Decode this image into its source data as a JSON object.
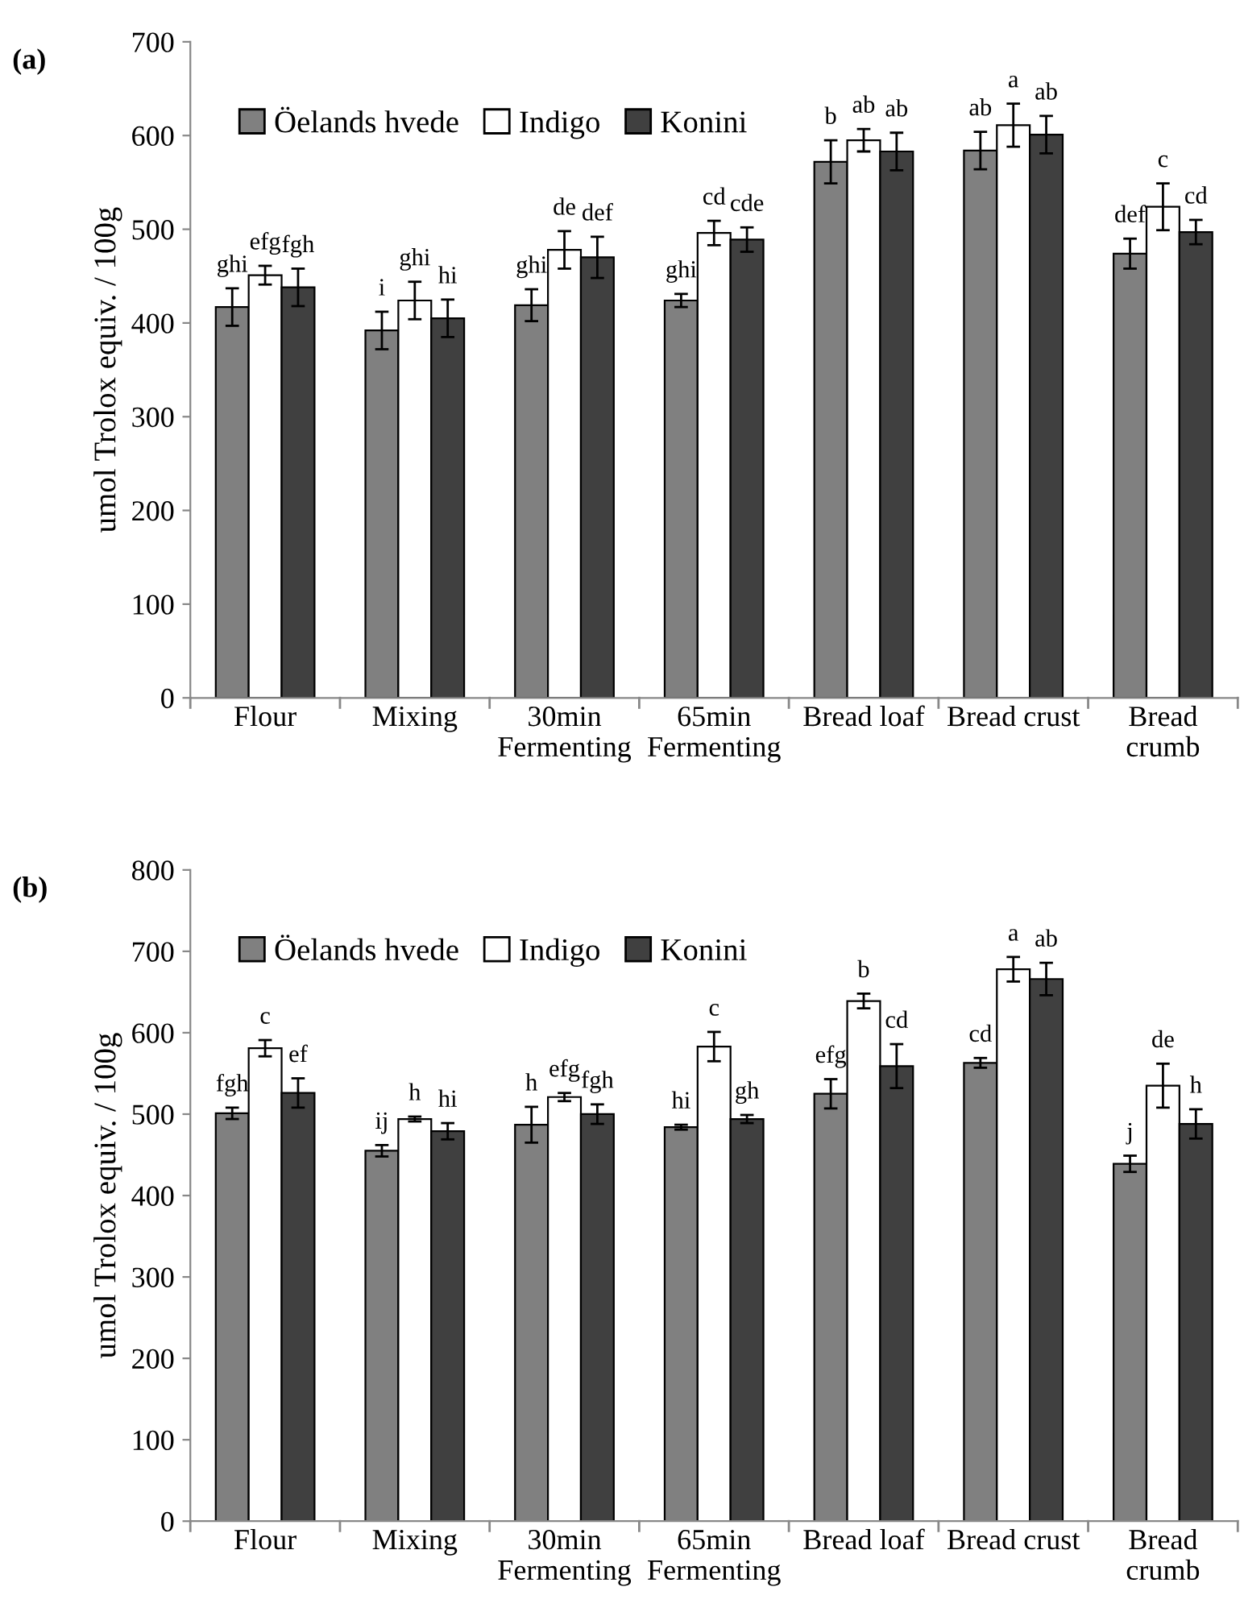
{
  "chart_data": [
    {
      "type": "bar",
      "title": "(a)",
      "ylabel": "umol Trolox equiv. / 100g",
      "categories": [
        "Flour",
        "Mixing",
        "30min\nFermenting",
        "65min\nFermenting",
        "Bread loaf",
        "Bread crust",
        "Bread\ncrumb"
      ],
      "series": [
        {
          "name": "Öelands hvede",
          "color": "#808080",
          "values": [
            417,
            392,
            419,
            424,
            572,
            584,
            474
          ],
          "errors": [
            20,
            20,
            17,
            7,
            23,
            20,
            16
          ]
        },
        {
          "name": "Indigo",
          "color": "#ffffff",
          "values": [
            451,
            424,
            478,
            496,
            595,
            611,
            524
          ],
          "errors": [
            10,
            20,
            20,
            13,
            12,
            23,
            25
          ]
        },
        {
          "name": "Konini",
          "color": "#404040",
          "values": [
            438,
            405,
            470,
            489,
            583,
            601,
            497
          ],
          "errors": [
            20,
            20,
            22,
            13,
            20,
            20,
            13
          ]
        }
      ],
      "ylim": [
        0,
        700
      ],
      "yticks": [
        0,
        100,
        200,
        300,
        400,
        500,
        600,
        700
      ],
      "grid": false,
      "legend": "top left",
      "annotations": [
        "ghi",
        "efg",
        "fgh",
        "i",
        "ghi",
        "hi",
        "ghi",
        "de",
        "def",
        "ghi",
        "cd",
        "cde",
        "b",
        "ab",
        "ab",
        "ab",
        "a",
        "ab",
        "def",
        "c",
        "cd"
      ]
    },
    {
      "type": "bar",
      "title": "(b)",
      "ylabel": "umol Trolox equiv. / 100g",
      "categories": [
        "Flour",
        "Mixing",
        "30min\nFermenting",
        "65min\nFermenting",
        "Bread loaf",
        "Bread crust",
        "Bread\ncrumb"
      ],
      "series": [
        {
          "name": "Öelands hvede",
          "color": "#808080",
          "values": [
            501,
            455,
            487,
            484,
            525,
            563,
            439
          ],
          "errors": [
            7,
            7,
            22,
            3,
            18,
            6,
            10
          ]
        },
        {
          "name": "Indigo",
          "color": "#ffffff",
          "values": [
            581,
            494,
            521,
            583,
            639,
            678,
            535
          ],
          "errors": [
            10,
            3,
            5,
            18,
            9,
            15,
            27
          ]
        },
        {
          "name": "Konini",
          "color": "#404040",
          "values": [
            526,
            479,
            500,
            494,
            559,
            666,
            488
          ],
          "errors": [
            18,
            10,
            12,
            5,
            27,
            20,
            18
          ]
        }
      ],
      "ylim": [
        0,
        800
      ],
      "yticks": [
        0,
        100,
        200,
        300,
        400,
        500,
        600,
        700,
        800
      ],
      "grid": false,
      "legend": "top left",
      "annotations": [
        "fgh",
        "c",
        "ef",
        "ij",
        "h",
        "hi",
        "h",
        "efg",
        "fgh",
        "hi",
        "c",
        "gh",
        "efg",
        "b",
        "cd",
        "cd",
        "a",
        "ab",
        "j",
        "de",
        "h"
      ]
    }
  ]
}
